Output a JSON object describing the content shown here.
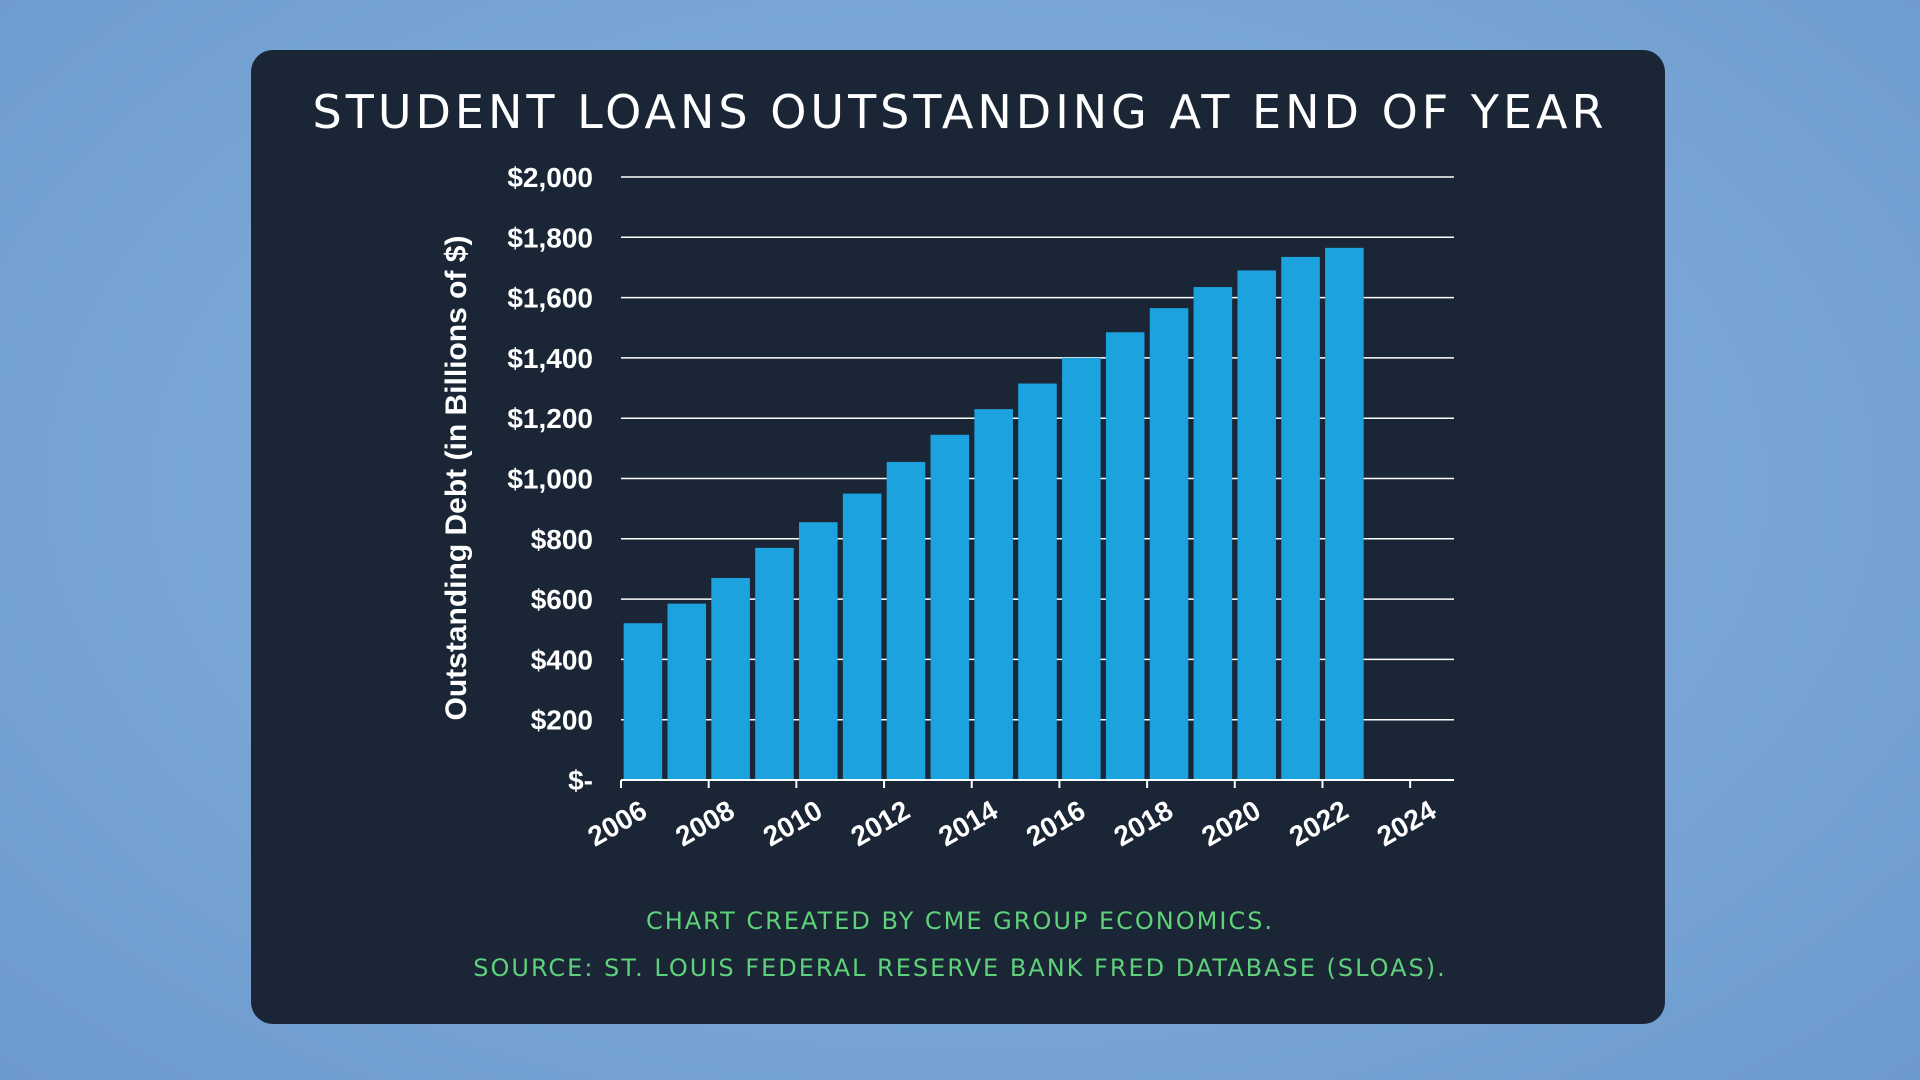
{
  "chart_data": {
    "type": "bar",
    "title": "STUDENT LOANS OUTSTANDING AT END OF YEAR",
    "ylabel": "Outstanding Debt (in Billions of $)",
    "xlabel": "",
    "x": [
      2006,
      2007,
      2008,
      2009,
      2010,
      2011,
      2012,
      2013,
      2014,
      2015,
      2016,
      2017,
      2018,
      2019,
      2020,
      2021,
      2022
    ],
    "values": [
      520,
      585,
      670,
      770,
      855,
      950,
      1055,
      1145,
      1230,
      1315,
      1400,
      1485,
      1565,
      1635,
      1690,
      1735,
      1765
    ],
    "ylim": [
      0,
      2000
    ],
    "xlim": [
      2006,
      2025
    ],
    "y_ticks": [
      0,
      200,
      400,
      600,
      800,
      1000,
      1200,
      1400,
      1600,
      1800,
      2000
    ],
    "y_tick_labels": [
      "$-",
      "$200",
      "$400",
      "$600",
      "$800",
      "$1,000",
      "$1,200",
      "$1,400",
      "$1,600",
      "$1,800",
      "$2,000"
    ],
    "x_tick_labels": [
      "2006",
      "2008",
      "2010",
      "2012",
      "2014",
      "2016",
      "2018",
      "2020",
      "2022",
      "2024"
    ],
    "grid": true,
    "legend": "none",
    "bar_color": "#1ca3df",
    "grid_color": "#ffffff",
    "background_color": "#1a2535"
  },
  "captions": {
    "created_by": "CHART CREATED BY CME GROUP ECONOMICS.",
    "source": "SOURCE: ST. LOUIS FEDERAL RESERVE BANK FRED DATABASE (SLOAS)."
  }
}
